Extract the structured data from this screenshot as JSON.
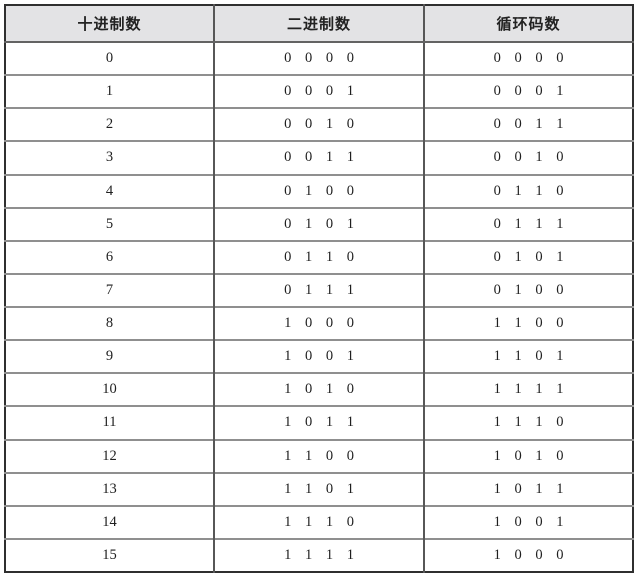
{
  "table": {
    "headers": [
      {
        "label": "十进制数"
      },
      {
        "label": "二进制数"
      },
      {
        "label": "循环码数"
      }
    ],
    "rows": [
      {
        "dec": "0",
        "bin": "0 0 0 0",
        "gray": "0 0 0 0"
      },
      {
        "dec": "1",
        "bin": "0 0 0 1",
        "gray": "0 0 0 1"
      },
      {
        "dec": "2",
        "bin": "0 0 1 0",
        "gray": "0 0 1 1"
      },
      {
        "dec": "3",
        "bin": "0 0 1 1",
        "gray": "0 0 1 0"
      },
      {
        "dec": "4",
        "bin": "0 1 0 0",
        "gray": "0 1 1 0"
      },
      {
        "dec": "5",
        "bin": "0 1 0 1",
        "gray": "0 1 1 1"
      },
      {
        "dec": "6",
        "bin": "0 1 1 0",
        "gray": "0 1 0 1"
      },
      {
        "dec": "7",
        "bin": "0 1 1 1",
        "gray": "0 1 0 0"
      },
      {
        "dec": "8",
        "bin": "1 0 0 0",
        "gray": "1 1 0 0"
      },
      {
        "dec": "9",
        "bin": "1 0 0 1",
        "gray": "1 1 0 1"
      },
      {
        "dec": "10",
        "bin": "1 0 1 0",
        "gray": "1 1 1 1"
      },
      {
        "dec": "11",
        "bin": "1 0 1 1",
        "gray": "1 1 1 0"
      },
      {
        "dec": "12",
        "bin": "1 1 0 0",
        "gray": "1 0 1 0"
      },
      {
        "dec": "13",
        "bin": "1 1 0 1",
        "gray": "1 0 1 1"
      },
      {
        "dec": "14",
        "bin": "1 1 1 0",
        "gray": "1 0 0 1"
      },
      {
        "dec": "15",
        "bin": "1 1 1 1",
        "gray": "1 0 0 0"
      }
    ]
  },
  "colors": {
    "header_bg": "#e3e3e5",
    "outer_border": "#2f2f2f",
    "inner_vertical_rule": "#575757",
    "inner_horizontal_rule": "#8f8f8f",
    "text": "#1f1f1f"
  }
}
